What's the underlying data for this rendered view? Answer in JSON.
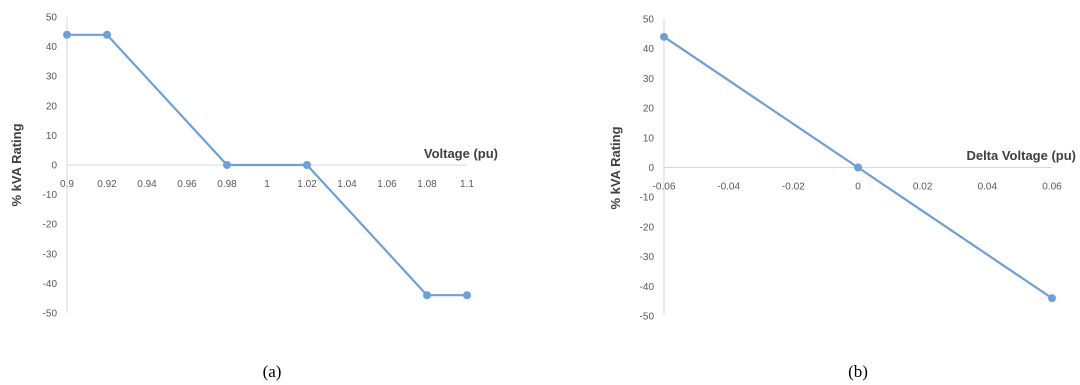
{
  "chart_data": [
    {
      "type": "line",
      "caption": "(a)",
      "xlabel": "Voltage (pu)",
      "ylabel": "% kVA Rating",
      "x_ticks": [
        "0.9",
        "0.92",
        "0.94",
        "0.96",
        "0.98",
        "1",
        "1.02",
        "1.04",
        "1.06",
        "1.08",
        "1.1"
      ],
      "y_ticks": [
        "50",
        "40",
        "30",
        "20",
        "10",
        "0",
        "-10",
        "-20",
        "-30",
        "-40",
        "-50"
      ],
      "xlim": [
        0.9,
        1.1
      ],
      "ylim": [
        -50,
        50
      ],
      "series": [
        {
          "points": [
            [
              0.9,
              44
            ],
            [
              0.92,
              44
            ],
            [
              0.98,
              0
            ],
            [
              1.02,
              0
            ],
            [
              1.08,
              -44
            ],
            [
              1.1,
              -44
            ]
          ]
        }
      ],
      "line_color": "#6f9fd6",
      "grid": false
    },
    {
      "type": "line",
      "caption": "(b)",
      "xlabel": "Delta Voltage (pu)",
      "ylabel": "% kVA Rating",
      "x_ticks": [
        "-0.06",
        "-0.04",
        "-0.02",
        "0",
        "0.02",
        "0.04",
        "0.06"
      ],
      "y_ticks": [
        "50",
        "40",
        "30",
        "20",
        "10",
        "0",
        "-10",
        "-20",
        "-30",
        "-40",
        "-50"
      ],
      "xlim": [
        -0.06,
        0.06
      ],
      "ylim": [
        -50,
        50
      ],
      "series": [
        {
          "points": [
            [
              -0.06,
              44
            ],
            [
              0,
              0
            ],
            [
              0.06,
              -44
            ]
          ]
        }
      ],
      "line_color": "#6f9fd6",
      "grid": false
    }
  ]
}
